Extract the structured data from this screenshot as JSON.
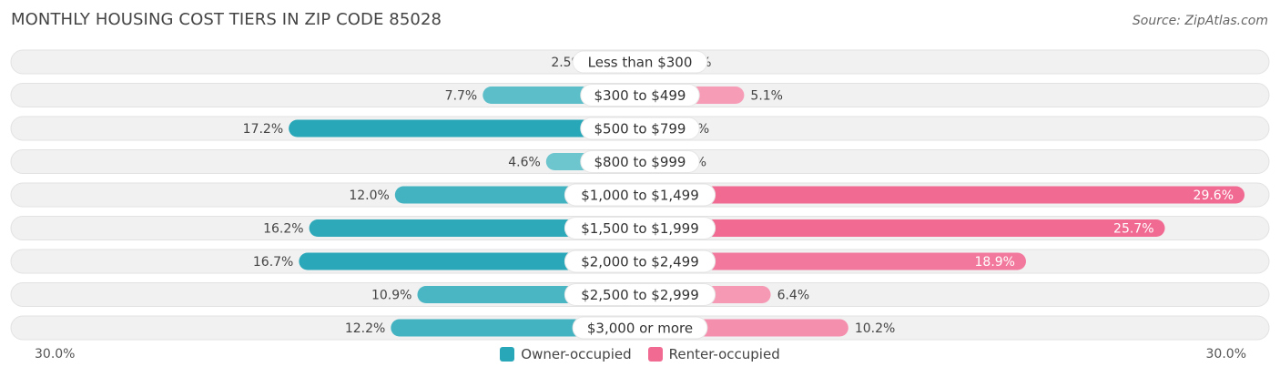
{
  "title": "MONTHLY HOUSING COST TIERS IN ZIP CODE 85028",
  "source": "Source: ZipAtlas.com",
  "colors": {
    "owner": "#27a7b8",
    "owner_light": "#86d0d6",
    "renter": "#f06a92",
    "renter_light": "#f7a9c1",
    "track": "#f1f1f1"
  },
  "chart_data": {
    "type": "bar",
    "orientation": "horizontal-diverging",
    "categories": [
      "Less than $300",
      "$300 to $499",
      "$500 to $799",
      "$800 to $999",
      "$1,000 to $1,499",
      "$1,500 to $1,999",
      "$2,000 to $2,499",
      "$2,500 to $2,999",
      "$3,000 or more"
    ],
    "series": [
      {
        "name": "Owner-occupied",
        "values": [
          2.5,
          7.7,
          17.2,
          4.6,
          12.0,
          16.2,
          16.7,
          10.9,
          12.2
        ],
        "labels": [
          "2.5%",
          "7.7%",
          "17.2%",
          "4.6%",
          "12.0%",
          "16.2%",
          "16.7%",
          "10.9%",
          "12.2%"
        ]
      },
      {
        "name": "Renter-occupied",
        "values": [
          1.6,
          5.1,
          1.5,
          0.96,
          29.6,
          25.7,
          18.9,
          6.4,
          10.2
        ],
        "labels": [
          "1.6%",
          "5.1%",
          "1.5%",
          "0.96%",
          "29.6%",
          "25.7%",
          "18.9%",
          "6.4%",
          "10.2%"
        ]
      }
    ],
    "xlim": [
      -30,
      30
    ],
    "axis_labels": {
      "left": "30.0%",
      "right": "30.0%"
    },
    "legend": "bottom-center"
  }
}
